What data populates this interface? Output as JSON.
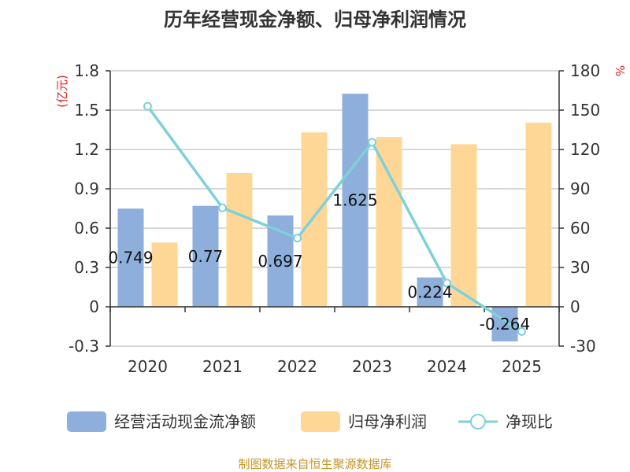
{
  "chart_data": {
    "type": "bar+line",
    "title": "历年经营现金净额、归母净利润情况",
    "categories": [
      "2020",
      "2021",
      "2022",
      "2023",
      "2024",
      "2025"
    ],
    "series": [
      {
        "name": "经营活动现金流净额",
        "type": "bar",
        "axis": "left",
        "color": "#8eaedb",
        "values": [
          0.749,
          0.77,
          0.697,
          1.625,
          0.224,
          -0.264
        ],
        "data_labels": [
          "0.749",
          "0.77",
          "0.697",
          "1.625",
          "0.224",
          "-0.264"
        ]
      },
      {
        "name": "归母净利润",
        "type": "bar",
        "axis": "left",
        "color": "#fed797",
        "values": [
          0.49,
          1.02,
          1.33,
          1.295,
          1.24,
          1.405
        ]
      },
      {
        "name": "净现比",
        "type": "line",
        "axis": "right",
        "color": "#7fd1d8",
        "values": [
          152.9,
          75.5,
          52.4,
          125.5,
          18.1,
          -18.8
        ]
      }
    ],
    "left_axis": {
      "unit": "(亿元)",
      "min": -0.3,
      "max": 1.8,
      "step": 0.3,
      "tick_labels": [
        "-0.3",
        "0",
        "0.3",
        "0.6",
        "0.9",
        "1.2",
        "1.5",
        "1.8"
      ]
    },
    "right_axis": {
      "unit": "%",
      "min": -30,
      "max": 180,
      "step": 30,
      "tick_labels": [
        "-30",
        "0",
        "30",
        "60",
        "90",
        "120",
        "150",
        "180"
      ]
    },
    "legend_position": "bottom",
    "source": "制图数据来自恒生聚源数据库"
  }
}
